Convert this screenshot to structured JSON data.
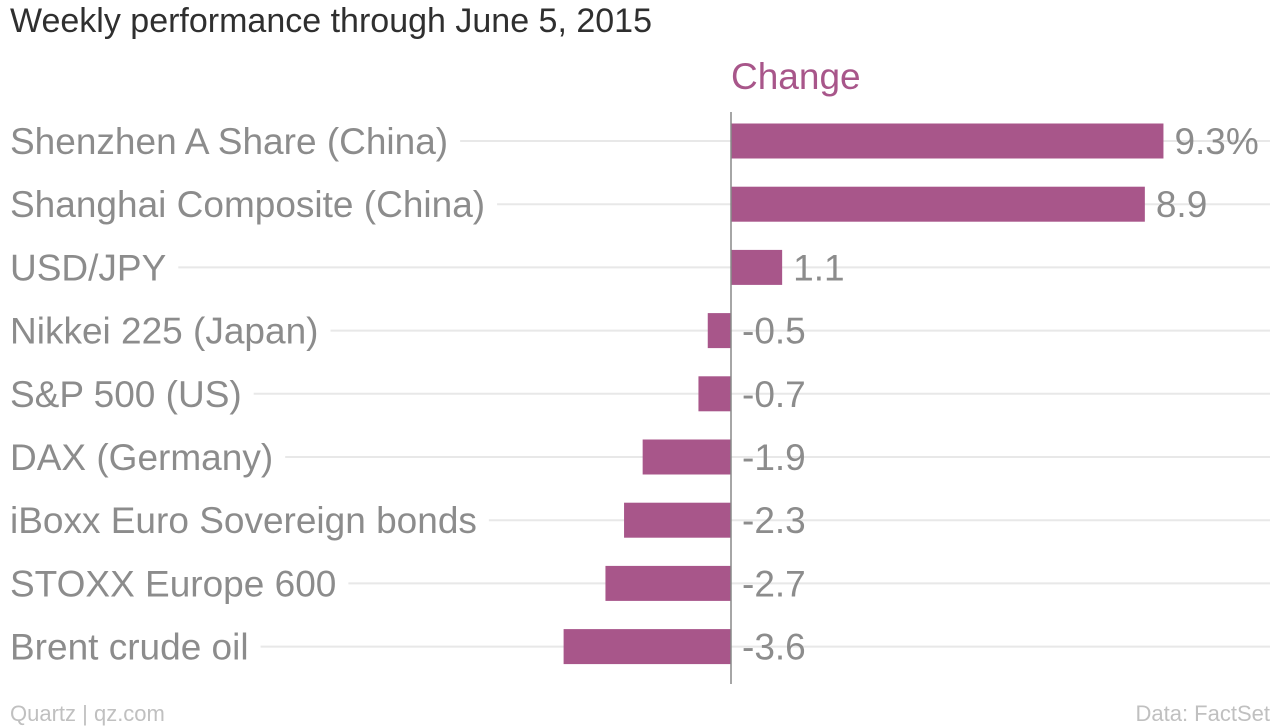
{
  "chart_data": {
    "type": "bar",
    "orientation": "horizontal",
    "title": "Weekly performance through June 5, 2015",
    "categories": [
      "Shenzhen A Share (China)",
      "Shanghai Composite (China)",
      "USD/JPY",
      "Nikkei 225 (Japan)",
      "S&P 500 (US)",
      "DAX (Germany)",
      "iBoxx Euro Sovereign bonds",
      "STOXX Europe 600",
      "Brent crude oil"
    ],
    "series": [
      {
        "name": "Change",
        "values": [
          9.3,
          8.9,
          1.1,
          -0.5,
          -0.7,
          -1.9,
          -2.3,
          -2.7,
          -3.6
        ]
      }
    ],
    "value_labels": [
      "9.3%",
      "8.9",
      "1.1",
      "-0.5",
      "-0.7",
      "-1.9",
      "-2.3",
      "-2.7",
      "-3.6"
    ],
    "xlim": [
      -3.6,
      9.3
    ],
    "grid": true,
    "bar_color": "#a8568a",
    "series_label_color": "#a8568a",
    "gridline_color": "#e8e8e8",
    "zero_line_color": "#888888",
    "label_color": "#8c8c8c"
  },
  "footer": {
    "source_left": "Quartz | qz.com",
    "source_right": "Data: FactSet"
  }
}
